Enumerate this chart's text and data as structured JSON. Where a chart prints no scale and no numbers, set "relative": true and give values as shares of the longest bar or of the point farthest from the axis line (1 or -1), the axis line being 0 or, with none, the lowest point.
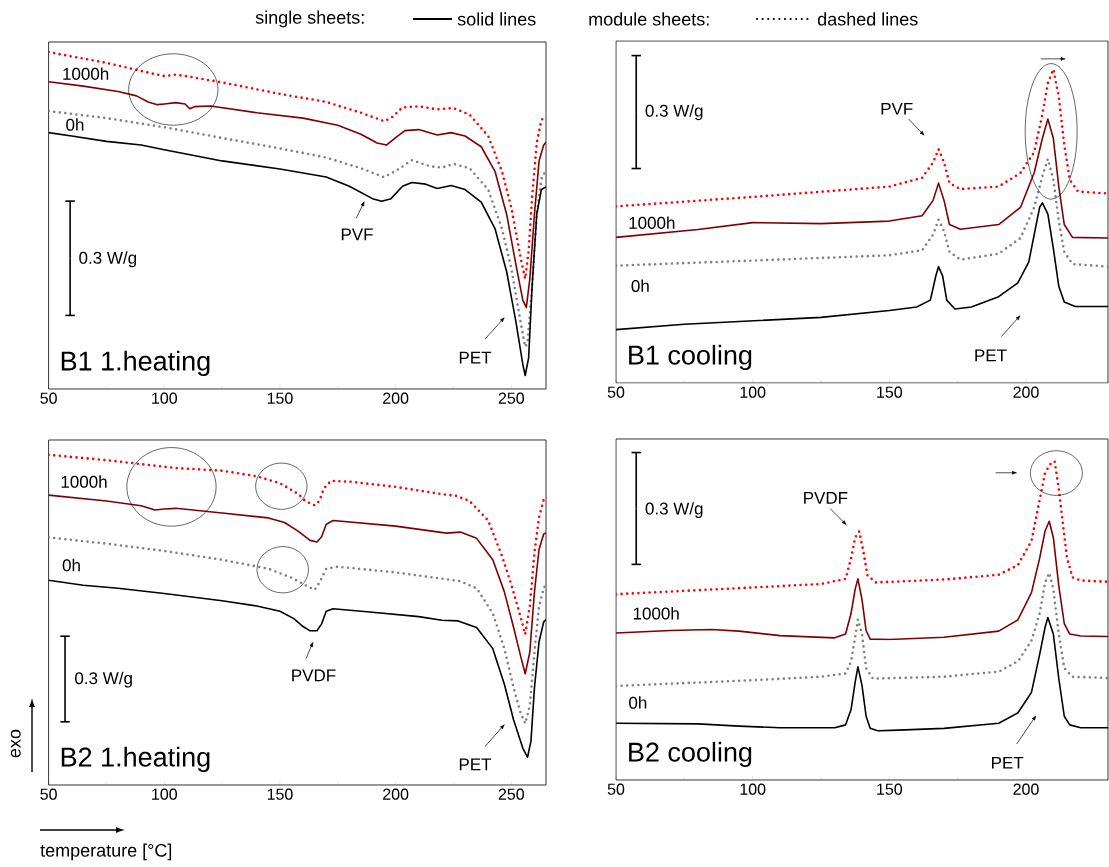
{
  "chart_data": [
    {
      "type": "line",
      "title": "B1 1.heating",
      "relative": true,
      "tick_labels": "x",
      "marker": "none",
      "xlim": [
        50,
        265
      ],
      "xticks": [
        50,
        100,
        150,
        200,
        250
      ],
      "series": [
        {
          "color": "#808080",
          "line_style": "dotted",
          "x": [
            50,
            75,
            100,
            125,
            150,
            170,
            185,
            195,
            200,
            207,
            215,
            220,
            225,
            232,
            240,
            246,
            250,
            254,
            256,
            257,
            259,
            261,
            263,
            265
          ],
          "values": [
            0.825,
            0.804,
            0.777,
            0.745,
            0.714,
            0.687,
            0.655,
            0.629,
            0.647,
            0.679,
            0.661,
            0.657,
            0.668,
            0.655,
            0.592,
            0.475,
            0.359,
            0.199,
            0.125,
            0.136,
            0.306,
            0.518,
            0.624,
            0.65
          ]
        },
        {
          "color": "#ff0000",
          "line_style": "dotted",
          "x": [
            50,
            75,
            95,
            100,
            105,
            110,
            125,
            150,
            170,
            185,
            195,
            198,
            203,
            210,
            218,
            225,
            232,
            240,
            246,
            250,
            254,
            256,
            257.5,
            259,
            261,
            263,
            265
          ],
          "values": [
            1.0,
            0.968,
            0.936,
            0.929,
            0.933,
            0.928,
            0.91,
            0.876,
            0.852,
            0.82,
            0.795,
            0.804,
            0.836,
            0.839,
            0.83,
            0.834,
            0.814,
            0.751,
            0.645,
            0.539,
            0.39,
            0.327,
            0.411,
            0.571,
            0.73,
            0.799,
            0.809
          ]
        },
        {
          "color": "#000000",
          "line_style": "solid",
          "x": [
            50,
            60,
            75,
            90,
            100,
            125,
            150,
            170,
            180,
            190,
            194,
            198,
            203,
            207,
            213,
            218,
            224,
            230,
            237,
            243,
            248,
            252,
            255,
            256,
            257.5,
            259,
            261,
            263,
            265
          ],
          "values": [
            0.761,
            0.751,
            0.735,
            0.724,
            0.71,
            0.677,
            0.653,
            0.629,
            0.602,
            0.565,
            0.557,
            0.565,
            0.602,
            0.613,
            0.608,
            0.595,
            0.604,
            0.592,
            0.555,
            0.475,
            0.348,
            0.199,
            0.072,
            0.04,
            0.093,
            0.306,
            0.518,
            0.592,
            0.6
          ]
        },
        {
          "color": "#800000",
          "line_style": "solid",
          "x": [
            50,
            65,
            80,
            88,
            93,
            97,
            100,
            105,
            109,
            111,
            113,
            120,
            140,
            160,
            175,
            185,
            192,
            196,
            200,
            204,
            210,
            218,
            224,
            230,
            237,
            243,
            248,
            252,
            255,
            256.5,
            258,
            260,
            262,
            264,
            265
          ],
          "values": [
            0.912,
            0.899,
            0.883,
            0.87,
            0.852,
            0.844,
            0.846,
            0.85,
            0.846,
            0.832,
            0.838,
            0.84,
            0.82,
            0.804,
            0.783,
            0.756,
            0.73,
            0.724,
            0.746,
            0.767,
            0.77,
            0.754,
            0.761,
            0.751,
            0.719,
            0.645,
            0.518,
            0.369,
            0.263,
            0.242,
            0.327,
            0.518,
            0.677,
            0.724,
            0.732
          ]
        }
      ],
      "annotations": [
        "single sheets:",
        "solid lines",
        "module sheets:",
        "dashed lines",
        "1000h",
        "0h",
        "PVF",
        "PET",
        "0.3 W/g"
      ]
    },
    {
      "type": "line",
      "title": "B1 cooling",
      "relative": true,
      "tick_labels": "x",
      "marker": "none",
      "xlim": [
        50,
        230
      ],
      "xticks": [
        50,
        100,
        150,
        200
      ],
      "series": [
        {
          "color": "#808080",
          "line_style": "dotted",
          "x": [
            50,
            100,
            150,
            162,
            166,
            168,
            170,
            172,
            176,
            190,
            198,
            203,
            206,
            208,
            210,
            212,
            214,
            217,
            230
          ],
          "values": [
            0.374,
            0.39,
            0.407,
            0.423,
            0.473,
            0.52,
            0.484,
            0.418,
            0.393,
            0.412,
            0.462,
            0.56,
            0.659,
            0.714,
            0.648,
            0.516,
            0.418,
            0.379,
            0.371
          ]
        },
        {
          "color": "#ff0000",
          "line_style": "dotted",
          "x": [
            50,
            100,
            150,
            162,
            166,
            168,
            170,
            172,
            176,
            190,
            198,
            203,
            206,
            208,
            210,
            212,
            214,
            216,
            219,
            230
          ],
          "values": [
            0.563,
            0.593,
            0.626,
            0.654,
            0.703,
            0.745,
            0.703,
            0.637,
            0.618,
            0.626,
            0.67,
            0.736,
            0.857,
            0.956,
            1.0,
            0.912,
            0.758,
            0.648,
            0.61,
            0.604
          ]
        },
        {
          "color": "#000000",
          "line_style": "solid",
          "x": [
            50,
            75,
            100,
            125,
            150,
            160,
            165,
            167,
            168,
            169.5,
            171,
            174,
            180,
            190,
            197,
            201,
            203,
            205,
            206,
            208,
            210,
            212,
            214,
            218,
            230
          ],
          "values": [
            0.17,
            0.187,
            0.198,
            0.209,
            0.231,
            0.242,
            0.264,
            0.341,
            0.371,
            0.341,
            0.264,
            0.236,
            0.242,
            0.275,
            0.319,
            0.385,
            0.473,
            0.56,
            0.574,
            0.538,
            0.429,
            0.308,
            0.258,
            0.244,
            0.244
          ]
        },
        {
          "color": "#800000",
          "line_style": "solid",
          "x": [
            50,
            80,
            100,
            125,
            150,
            162,
            166,
            168,
            170,
            172,
            176,
            190,
            198,
            203,
            206,
            208,
            210,
            212,
            214,
            217,
            230
          ],
          "values": [
            0.464,
            0.489,
            0.511,
            0.508,
            0.516,
            0.533,
            0.582,
            0.637,
            0.582,
            0.505,
            0.49,
            0.505,
            0.56,
            0.67,
            0.78,
            0.841,
            0.78,
            0.626,
            0.505,
            0.464,
            0.462
          ]
        }
      ],
      "annotations": [
        "PVF",
        "1000h",
        "0h",
        "PET",
        "0.3 W/g"
      ]
    },
    {
      "type": "line",
      "title": "B2 1.heating",
      "xlabel": "temperature [°C]",
      "ylabel": "exo",
      "relative": true,
      "tick_labels": "x",
      "marker": "none",
      "xlim": [
        50,
        265
      ],
      "xticks": [
        50,
        100,
        150,
        200,
        250
      ],
      "series": [
        {
          "color": "#808080",
          "line_style": "dotted",
          "x": [
            50,
            75,
            100,
            125,
            145,
            155,
            162,
            165,
            167,
            170,
            175,
            200,
            222,
            228,
            235,
            242,
            247,
            251,
            254,
            256,
            258,
            260,
            262,
            264,
            265
          ],
          "values": [
            0.75,
            0.731,
            0.709,
            0.682,
            0.655,
            0.628,
            0.601,
            0.591,
            0.612,
            0.655,
            0.661,
            0.644,
            0.623,
            0.617,
            0.596,
            0.52,
            0.413,
            0.294,
            0.219,
            0.186,
            0.24,
            0.402,
            0.542,
            0.596,
            0.609
          ]
        },
        {
          "color": "#ff0000",
          "line_style": "dotted",
          "x": [
            50,
            75,
            95,
            105,
            125,
            140,
            150,
            158,
            161,
            165,
            167,
            169,
            172,
            180,
            200,
            220,
            226,
            232,
            240,
            246,
            250,
            254,
            256,
            258,
            260,
            262,
            264,
            265
          ],
          "values": [
            1.0,
            0.984,
            0.968,
            0.96,
            0.952,
            0.935,
            0.914,
            0.881,
            0.86,
            0.847,
            0.86,
            0.898,
            0.921,
            0.919,
            0.903,
            0.881,
            0.876,
            0.86,
            0.801,
            0.693,
            0.607,
            0.51,
            0.456,
            0.542,
            0.704,
            0.811,
            0.865,
            0.871
          ]
        },
        {
          "color": "#000000",
          "line_style": "solid",
          "x": [
            50,
            65,
            80,
            100,
            125,
            140,
            150,
            156,
            160,
            163,
            166,
            168,
            170,
            173,
            190,
            210,
            220,
            227,
            235,
            242,
            247,
            251,
            255,
            257,
            258.5,
            260,
            262,
            264,
            265
          ],
          "values": [
            0.62,
            0.605,
            0.596,
            0.58,
            0.558,
            0.542,
            0.526,
            0.504,
            0.48,
            0.467,
            0.467,
            0.488,
            0.526,
            0.534,
            0.523,
            0.51,
            0.499,
            0.497,
            0.477,
            0.413,
            0.305,
            0.197,
            0.111,
            0.084,
            0.133,
            0.294,
            0.434,
            0.494,
            0.501
          ]
        },
        {
          "color": "#800000",
          "line_style": "solid",
          "x": [
            50,
            75,
            90,
            96,
            100,
            105,
            125,
            145,
            152,
            158,
            163,
            166,
            168,
            170,
            173,
            200,
            222,
            228,
            235,
            242,
            247,
            251,
            254,
            256,
            258,
            260,
            262,
            264,
            265
          ],
          "values": [
            0.878,
            0.86,
            0.846,
            0.833,
            0.836,
            0.838,
            0.824,
            0.809,
            0.795,
            0.768,
            0.741,
            0.736,
            0.752,
            0.79,
            0.801,
            0.784,
            0.763,
            0.766,
            0.747,
            0.682,
            0.585,
            0.477,
            0.391,
            0.337,
            0.402,
            0.585,
            0.714,
            0.76,
            0.763
          ]
        }
      ],
      "annotations": [
        "1000h",
        "0h",
        "PVDF",
        "PET",
        "0.3 W/g"
      ]
    },
    {
      "type": "line",
      "title": "B2 cooling",
      "relative": true,
      "tick_labels": "x",
      "marker": "none",
      "xlim": [
        50,
        230
      ],
      "xticks": [
        50,
        100,
        150,
        200
      ],
      "series": [
        {
          "color": "#808080",
          "line_style": "dotted",
          "x": [
            50,
            100,
            125,
            134,
            136,
            137.5,
            138.5,
            140,
            141.5,
            144,
            170,
            190,
            197,
            202,
            205,
            207,
            208.5,
            210,
            212,
            214,
            217,
            230
          ],
          "values": [
            0.295,
            0.313,
            0.324,
            0.334,
            0.372,
            0.448,
            0.504,
            0.458,
            0.351,
            0.318,
            0.324,
            0.34,
            0.372,
            0.437,
            0.523,
            0.62,
            0.65,
            0.599,
            0.458,
            0.351,
            0.324,
            0.32
          ]
        },
        {
          "color": "#ff0000",
          "line_style": "dotted",
          "x": [
            50,
            100,
            125,
            134,
            136,
            137.5,
            139,
            140.5,
            142,
            145,
            170,
            190,
            197,
            202,
            205,
            207,
            209,
            210.5,
            212,
            213.5,
            215,
            217,
            220,
            230
          ],
          "values": [
            0.583,
            0.604,
            0.615,
            0.631,
            0.696,
            0.761,
            0.78,
            0.717,
            0.642,
            0.62,
            0.629,
            0.644,
            0.674,
            0.75,
            0.879,
            0.965,
            0.992,
            1.0,
            0.912,
            0.804,
            0.696,
            0.636,
            0.626,
            0.622
          ]
        },
        {
          "color": "#000000",
          "line_style": "solid",
          "x": [
            50,
            80,
            95,
            110,
            130,
            134,
            136,
            137.5,
            138.5,
            140,
            141.5,
            143,
            146,
            170,
            190,
            197,
            202,
            205,
            207,
            208,
            210,
            212,
            214,
            216,
            220,
            230
          ],
          "values": [
            0.178,
            0.176,
            0.169,
            0.164,
            0.164,
            0.173,
            0.221,
            0.307,
            0.355,
            0.297,
            0.2,
            0.162,
            0.154,
            0.162,
            0.178,
            0.21,
            0.275,
            0.394,
            0.48,
            0.51,
            0.458,
            0.318,
            0.2,
            0.173,
            0.164,
            0.164
          ]
        },
        {
          "color": "#800000",
          "line_style": "solid",
          "x": [
            50,
            70,
            85,
            95,
            110,
            130,
            134,
            136,
            137.5,
            138.5,
            140,
            141.5,
            143,
            150,
            170,
            190,
            197,
            202,
            205,
            207,
            208.5,
            210,
            212,
            214,
            216,
            220,
            230
          ],
          "values": [
            0.461,
            0.469,
            0.472,
            0.467,
            0.453,
            0.446,
            0.458,
            0.523,
            0.599,
            0.631,
            0.566,
            0.469,
            0.442,
            0.441,
            0.448,
            0.467,
            0.502,
            0.588,
            0.696,
            0.782,
            0.812,
            0.761,
            0.609,
            0.491,
            0.458,
            0.452,
            0.45
          ]
        }
      ],
      "annotations": [
        "PVDF",
        "1000h",
        "0h",
        "PET",
        "0.3 W/g"
      ]
    }
  ]
}
